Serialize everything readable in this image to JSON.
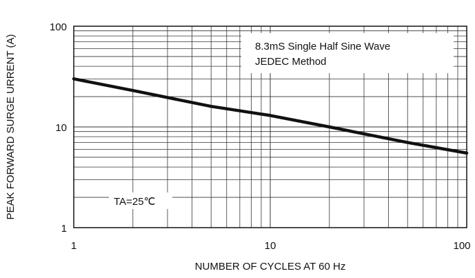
{
  "chart_data": {
    "type": "line",
    "title": "",
    "xlabel": "NUMBER OF CYCLES AT 60 Hz",
    "ylabel": "PEAK FORWARD SURGE URRENT (A)",
    "x_scale": "log",
    "y_scale": "log",
    "xlim": [
      1,
      100
    ],
    "ylim": [
      1,
      100
    ],
    "grid": true,
    "x_ticks": [
      "1",
      "10",
      "100"
    ],
    "y_ticks": [
      "1",
      "10",
      "100"
    ],
    "series": [
      {
        "x": [
          1,
          2,
          5,
          10,
          20,
          50,
          100
        ],
        "y": [
          30,
          23,
          16,
          13,
          10,
          7,
          5.5
        ]
      }
    ],
    "annotations": {
      "box_line1": "8.3mS Single Half Sine Wave",
      "box_line2": "JEDEC Method",
      "condition": "TA=25℃"
    },
    "line_color": "#111111",
    "grid_color": "#333333"
  }
}
